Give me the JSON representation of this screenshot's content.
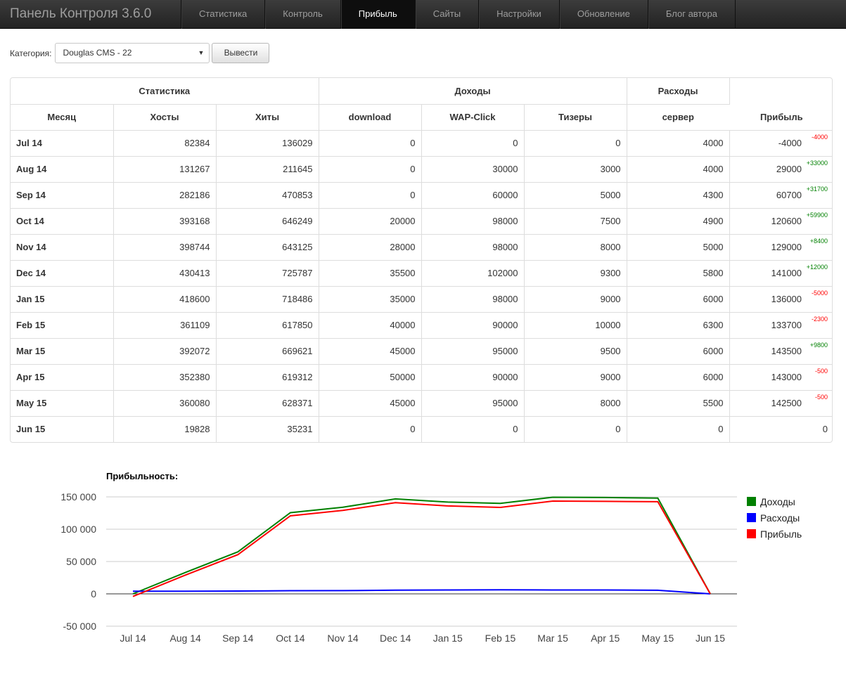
{
  "navbar": {
    "brand": "Панель Контроля 3.6.0",
    "items": [
      "Статистика",
      "Контроль",
      "Прибыль",
      "Сайты",
      "Настройки",
      "Обновление",
      "Блог автора"
    ],
    "active": "Прибыль"
  },
  "filter": {
    "label": "Категория:",
    "selected": "Douglas CMS - 22",
    "button": "Вывести"
  },
  "table": {
    "groups": {
      "stats": "Статистика",
      "income": "Доходы",
      "expenses": "Расходы",
      "profit": "Прибыль"
    },
    "columns": [
      "Месяц",
      "Хосты",
      "Хиты",
      "download",
      "WAP-Click",
      "Тизеры",
      "сервер"
    ],
    "rows": [
      {
        "month": "Jul 14",
        "hosts": "82384",
        "hits": "136029",
        "download": "0",
        "wap": "0",
        "teasers": "0",
        "server": "4000",
        "profit": "-4000",
        "delta": "-4000",
        "delta_sign": "neg"
      },
      {
        "month": "Aug 14",
        "hosts": "131267",
        "hits": "211645",
        "download": "0",
        "wap": "30000",
        "teasers": "3000",
        "server": "4000",
        "profit": "29000",
        "delta": "+33000",
        "delta_sign": "pos"
      },
      {
        "month": "Sep 14",
        "hosts": "282186",
        "hits": "470853",
        "download": "0",
        "wap": "60000",
        "teasers": "5000",
        "server": "4300",
        "profit": "60700",
        "delta": "+31700",
        "delta_sign": "pos"
      },
      {
        "month": "Oct 14",
        "hosts": "393168",
        "hits": "646249",
        "download": "20000",
        "wap": "98000",
        "teasers": "7500",
        "server": "4900",
        "profit": "120600",
        "delta": "+59900",
        "delta_sign": "pos"
      },
      {
        "month": "Nov 14",
        "hosts": "398744",
        "hits": "643125",
        "download": "28000",
        "wap": "98000",
        "teasers": "8000",
        "server": "5000",
        "profit": "129000",
        "delta": "+8400",
        "delta_sign": "pos"
      },
      {
        "month": "Dec 14",
        "hosts": "430413",
        "hits": "725787",
        "download": "35500",
        "wap": "102000",
        "teasers": "9300",
        "server": "5800",
        "profit": "141000",
        "delta": "+12000",
        "delta_sign": "pos"
      },
      {
        "month": "Jan 15",
        "hosts": "418600",
        "hits": "718486",
        "download": "35000",
        "wap": "98000",
        "teasers": "9000",
        "server": "6000",
        "profit": "136000",
        "delta": "-5000",
        "delta_sign": "neg"
      },
      {
        "month": "Feb 15",
        "hosts": "361109",
        "hits": "617850",
        "download": "40000",
        "wap": "90000",
        "teasers": "10000",
        "server": "6300",
        "profit": "133700",
        "delta": "-2300",
        "delta_sign": "neg"
      },
      {
        "month": "Mar 15",
        "hosts": "392072",
        "hits": "669621",
        "download": "45000",
        "wap": "95000",
        "teasers": "9500",
        "server": "6000",
        "profit": "143500",
        "delta": "+9800",
        "delta_sign": "pos"
      },
      {
        "month": "Apr 15",
        "hosts": "352380",
        "hits": "619312",
        "download": "50000",
        "wap": "90000",
        "teasers": "9000",
        "server": "6000",
        "profit": "143000",
        "delta": "-500",
        "delta_sign": "neg"
      },
      {
        "month": "May 15",
        "hosts": "360080",
        "hits": "628371",
        "download": "45000",
        "wap": "95000",
        "teasers": "8000",
        "server": "5500",
        "profit": "142500",
        "delta": "-500",
        "delta_sign": "neg"
      },
      {
        "month": "Jun 15",
        "hosts": "19828",
        "hits": "35231",
        "download": "0",
        "wap": "0",
        "teasers": "0",
        "server": "0",
        "profit": "0",
        "delta": "",
        "delta_sign": ""
      }
    ]
  },
  "chart_data": {
    "type": "line",
    "title": "Прибыльность:",
    "categories": [
      "Jul 14",
      "Aug 14",
      "Sep 14",
      "Oct 14",
      "Nov 14",
      "Dec 14",
      "Jan 15",
      "Feb 15",
      "Mar 15",
      "Apr 15",
      "May 15",
      "Jun 15"
    ],
    "series": [
      {
        "name": "Доходы",
        "color": "#008000",
        "values": [
          0,
          33000,
          65000,
          125500,
          134000,
          146800,
          142000,
          140000,
          149500,
          149000,
          148000,
          0
        ]
      },
      {
        "name": "Расходы",
        "color": "#0000ff",
        "values": [
          4000,
          4000,
          4300,
          4900,
          5000,
          5800,
          6000,
          6300,
          6000,
          6000,
          5500,
          0
        ]
      },
      {
        "name": "Прибыль",
        "color": "#ff0000",
        "values": [
          -4000,
          29000,
          60700,
          120600,
          129000,
          141000,
          136000,
          133700,
          143500,
          143000,
          142500,
          0
        ]
      }
    ],
    "yticks": [
      "150 000",
      "100 000",
      "50 000",
      "0",
      "-50 000"
    ],
    "ylim": [
      -50000,
      150000
    ],
    "legend": "right",
    "grid": true
  }
}
